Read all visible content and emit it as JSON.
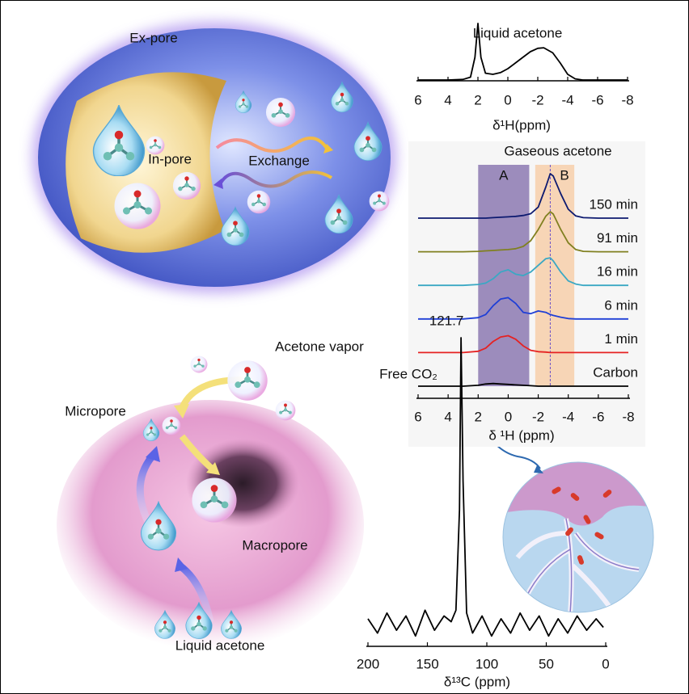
{
  "diagram_top": {
    "ex_pore": "Ex-pore",
    "in_pore": "In-pore",
    "exchange": "Exchange"
  },
  "diagram_bottom": {
    "acetone_vapor": "Acetone vapor",
    "micropore": "Micropore",
    "macropore": "Macropore",
    "liquid_acetone": "Liquid acetone"
  },
  "chart_data": [
    {
      "type": "line",
      "title": "Liquid acetone",
      "x_label": "δ¹H(ppm)",
      "x": [
        6,
        4,
        3,
        2.5,
        2.2,
        2.0,
        1.8,
        1.5,
        1,
        0.5,
        0,
        -0.5,
        -1,
        -1.5,
        -2,
        -2.4,
        -3,
        -3.5,
        -4,
        -4.5,
        -5,
        -6,
        -8
      ],
      "series": [
        {
          "name": null,
          "color": "#000000",
          "values": [
            0,
            0,
            0.01,
            0.05,
            0.4,
            1,
            0.4,
            0.12,
            0.1,
            0.13,
            0.2,
            0.3,
            0.4,
            0.5,
            0.56,
            0.57,
            0.48,
            0.3,
            0.1,
            0.02,
            0,
            0,
            0
          ]
        }
      ],
      "xlim": [
        6,
        -8
      ],
      "xticks": [
        6,
        4,
        2,
        0,
        -2,
        -4,
        -6,
        -8
      ]
    },
    {
      "type": "line",
      "title": "Gaseous acetone",
      "x_label": "δ ¹H (ppm)",
      "x": [
        6,
        4,
        3,
        2,
        1.5,
        1,
        0.5,
        0,
        -0.5,
        -1,
        -1.5,
        -2,
        -2.5,
        -2.8,
        -3,
        -3.5,
        -4,
        -4.5,
        -5,
        -6,
        -8
      ],
      "series": [
        {
          "name": "150 min",
          "color": "#0d1a70",
          "values": [
            0,
            0,
            0,
            0,
            0,
            0.01,
            0.02,
            0.03,
            0.04,
            0.06,
            0.1,
            0.25,
            0.7,
            1.0,
            0.95,
            0.55,
            0.2,
            0.05,
            0.01,
            0,
            0
          ]
        },
        {
          "name": "91 min",
          "color": "#808020",
          "values": [
            0,
            0,
            0,
            0.01,
            0.02,
            0.03,
            0.04,
            0.05,
            0.07,
            0.12,
            0.25,
            0.5,
            0.8,
            0.9,
            0.85,
            0.5,
            0.2,
            0.05,
            0.01,
            0,
            0
          ]
        },
        {
          "name": "16 min",
          "color": "#3aa8c4",
          "values": [
            0,
            0,
            0,
            0.02,
            0.05,
            0.15,
            0.3,
            0.35,
            0.25,
            0.22,
            0.3,
            0.45,
            0.6,
            0.62,
            0.55,
            0.3,
            0.1,
            0.03,
            0,
            0,
            0
          ]
        },
        {
          "name": "6 min",
          "color": "#1f3fd6",
          "values": [
            0,
            0,
            0,
            0.03,
            0.1,
            0.3,
            0.45,
            0.48,
            0.35,
            0.15,
            0.12,
            0.18,
            0.15,
            0.1,
            0.08,
            0.04,
            0.01,
            0,
            0,
            0,
            0
          ]
        },
        {
          "name": "1 min",
          "color": "#e52222",
          "values": [
            0,
            0,
            0,
            0.03,
            0.1,
            0.25,
            0.35,
            0.38,
            0.3,
            0.15,
            0.05,
            0.02,
            0.01,
            0,
            0,
            0,
            0,
            0,
            0,
            0,
            0
          ]
        },
        {
          "name": "Carbon",
          "color": "#000000",
          "values": [
            0,
            0,
            0,
            0.02,
            0.05,
            0.06,
            0.05,
            0.04,
            0.03,
            0.02,
            0.01,
            0,
            0,
            0,
            0,
            0,
            0,
            0,
            0,
            0,
            0
          ]
        }
      ],
      "regions": [
        {
          "label": "A",
          "range": [
            2,
            -1.4
          ],
          "color": "#7d68a8"
        },
        {
          "label": "B",
          "range": [
            -1.8,
            -4.4
          ],
          "color": "#f7c9a0"
        }
      ],
      "reference_line": -2.8,
      "xlim": [
        6,
        -8
      ],
      "xticks": [
        6,
        4,
        2,
        0,
        -2,
        -4,
        -6,
        -8
      ]
    },
    {
      "type": "line",
      "x_label": "δ¹³C (ppm)",
      "annotation": "Free CO₂",
      "peak": {
        "x": 121.7
      },
      "x": [
        200,
        192,
        184,
        176,
        168,
        160,
        152,
        144,
        136,
        130,
        126,
        123,
        121.7,
        120,
        117,
        112,
        104,
        96,
        88,
        80,
        72,
        64,
        56,
        48,
        40,
        32,
        24,
        16,
        8,
        2
      ],
      "series": [
        {
          "name": null,
          "color": "#000000",
          "values": [
            0.02,
            -0.03,
            0.04,
            -0.02,
            0.03,
            -0.04,
            0.05,
            -0.02,
            0.03,
            0.01,
            0.05,
            0.4,
            1,
            0.5,
            0.04,
            -0.03,
            0.03,
            -0.04,
            0.02,
            -0.03,
            0.04,
            -0.02,
            0.03,
            -0.04,
            0.02,
            -0.03,
            0.03,
            -0.02,
            0.02,
            -0.01
          ]
        }
      ],
      "xlim": [
        200,
        0
      ],
      "xticks": [
        200,
        150,
        100,
        50,
        0
      ]
    }
  ]
}
